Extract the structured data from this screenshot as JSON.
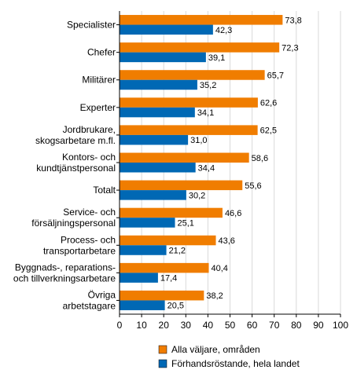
{
  "chart_data": {
    "type": "bar",
    "orientation": "horizontal",
    "categories": [
      [
        "Specialister"
      ],
      [
        "Chefer"
      ],
      [
        "Militärer"
      ],
      [
        "Experter"
      ],
      [
        "Jordbrukare,",
        "skogsarbetare m.fl."
      ],
      [
        "Kontors- och",
        "kundtjänstpersonal"
      ],
      [
        "Totalt"
      ],
      [
        "Service- och",
        "försäljningspersonal"
      ],
      [
        "Process- och",
        "transportarbetare"
      ],
      [
        "Byggnads-, reparations-",
        "och tillverkningsarbetare"
      ],
      [
        "Övriga",
        "arbetstagare"
      ]
    ],
    "series": [
      {
        "name": "Alla väljare, områden",
        "color": "#F07D00",
        "values": [
          73.8,
          72.3,
          65.7,
          62.6,
          62.5,
          58.6,
          55.6,
          46.6,
          43.6,
          40.4,
          38.2
        ],
        "labels": [
          "73,8",
          "72,3",
          "65,7",
          "62,6",
          "62,5",
          "58,6",
          "55,6",
          "46,6",
          "43,6",
          "40,4",
          "38,2"
        ]
      },
      {
        "name": "Förhandsröstande, hela landet",
        "color": "#0068B4",
        "values": [
          42.3,
          39.1,
          35.2,
          34.1,
          31.0,
          34.4,
          30.2,
          25.1,
          21.2,
          17.4,
          20.5
        ],
        "labels": [
          "42,3",
          "39,1",
          "35,2",
          "34,1",
          "31,0",
          "34,4",
          "30,2",
          "25,1",
          "21,2",
          "17,4",
          "20,5"
        ]
      }
    ],
    "xlim": [
      0,
      100
    ],
    "xticks": [
      0,
      10,
      20,
      30,
      40,
      50,
      60,
      70,
      80,
      90,
      100
    ],
    "grid": true,
    "legend_position": "bottom"
  }
}
